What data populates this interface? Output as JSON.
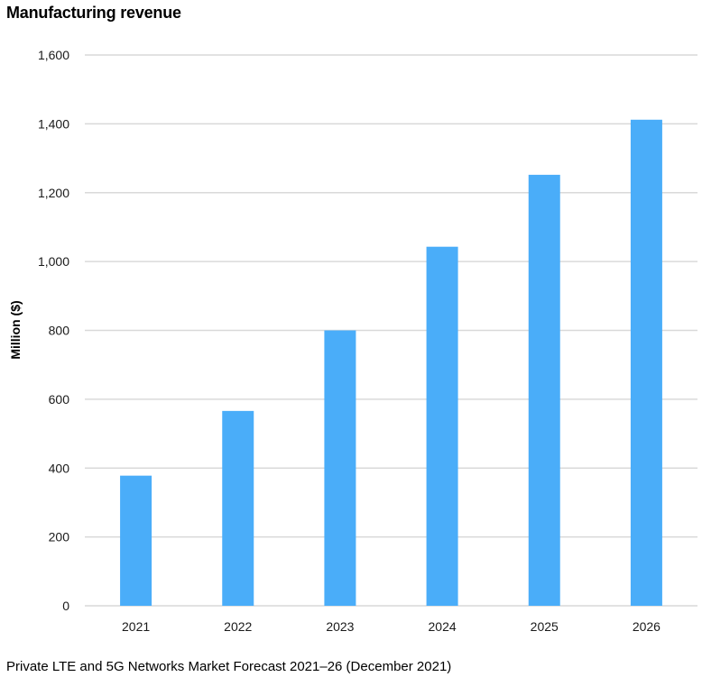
{
  "chart_data": {
    "type": "bar",
    "title": "Manufacturing revenue",
    "xlabel": "",
    "ylabel": "Million ($)",
    "categories": [
      "2021",
      "2022",
      "2023",
      "2024",
      "2025",
      "2026"
    ],
    "series": [
      {
        "name": "Manufacturing revenue",
        "values": [
          378,
          566,
          800,
          1043,
          1252,
          1412
        ]
      }
    ],
    "ylim": [
      0,
      1600
    ],
    "yticks": [
      0,
      200,
      400,
      600,
      800,
      1000,
      1200,
      1400,
      1600
    ],
    "ytick_labels": [
      "0",
      "200",
      "400",
      "600",
      "800",
      "1,000",
      "1,200",
      "1,400",
      "1,600"
    ],
    "grid": true,
    "legend": "none",
    "bar_color": "#4aadf9",
    "source": "Private LTE and 5G Networks Market Forecast 2021–26 (December 2021)"
  }
}
